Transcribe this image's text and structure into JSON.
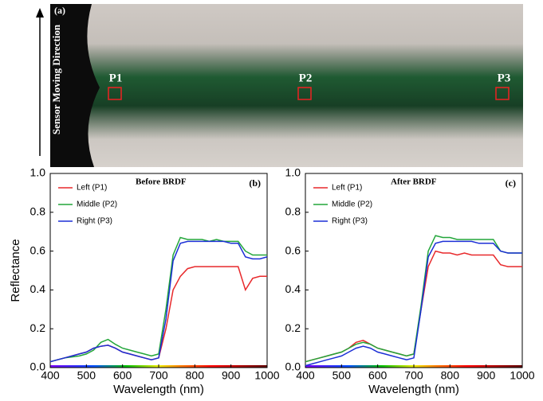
{
  "image": {
    "panel_label": "(a)",
    "arrow_label": "Sensor Moving Direction",
    "points": [
      "P1",
      "P2",
      "P3"
    ]
  },
  "chart_data": [
    {
      "type": "line",
      "title": "Before BRDF",
      "panel_label": "(b)",
      "xlabel": "Wavelength (nm)",
      "ylabel": "Reflectance",
      "x": [
        400,
        420,
        440,
        460,
        480,
        500,
        520,
        540,
        560,
        580,
        600,
        620,
        640,
        660,
        680,
        700,
        720,
        740,
        760,
        780,
        800,
        820,
        840,
        860,
        880,
        900,
        920,
        940,
        960,
        980,
        1000
      ],
      "series": [
        {
          "name": "Left (P1)",
          "color": "#e8292b",
          "values": [
            0.03,
            0.04,
            0.05,
            0.06,
            0.07,
            0.08,
            0.1,
            0.11,
            0.115,
            0.1,
            0.08,
            0.07,
            0.06,
            0.05,
            0.04,
            0.05,
            0.2,
            0.4,
            0.47,
            0.51,
            0.52,
            0.52,
            0.52,
            0.52,
            0.52,
            0.52,
            0.52,
            0.4,
            0.46,
            0.47,
            0.47
          ]
        },
        {
          "name": "Middle (P2)",
          "color": "#22a63a",
          "values": [
            0.03,
            0.04,
            0.05,
            0.055,
            0.06,
            0.07,
            0.09,
            0.13,
            0.145,
            0.12,
            0.1,
            0.09,
            0.08,
            0.07,
            0.06,
            0.07,
            0.3,
            0.58,
            0.67,
            0.66,
            0.66,
            0.66,
            0.65,
            0.66,
            0.65,
            0.65,
            0.65,
            0.6,
            0.58,
            0.58,
            0.58
          ]
        },
        {
          "name": "Right (P3)",
          "color": "#1c2fd6",
          "values": [
            0.03,
            0.04,
            0.05,
            0.06,
            0.07,
            0.08,
            0.1,
            0.11,
            0.115,
            0.1,
            0.08,
            0.07,
            0.06,
            0.05,
            0.04,
            0.05,
            0.25,
            0.55,
            0.64,
            0.65,
            0.65,
            0.65,
            0.65,
            0.65,
            0.65,
            0.64,
            0.64,
            0.57,
            0.56,
            0.56,
            0.57
          ]
        }
      ],
      "xlim": [
        400,
        1000
      ],
      "ylim": [
        0,
        1
      ],
      "xticks": [
        400,
        500,
        600,
        700,
        800,
        900,
        1000
      ],
      "yticks": [
        {
          "value": 0,
          "label": "0.0"
        },
        {
          "value": 0.2,
          "label": "0.2"
        },
        {
          "value": 0.4,
          "label": "0.4"
        },
        {
          "value": 0.6,
          "label": "0.6"
        },
        {
          "value": 0.8,
          "label": "0.8"
        },
        {
          "value": 1,
          "label": "1.0"
        }
      ]
    },
    {
      "type": "line",
      "title": "After BRDF",
      "panel_label": "(c)",
      "xlabel": "Wavelength (nm)",
      "x": [
        400,
        420,
        440,
        460,
        480,
        500,
        520,
        540,
        560,
        580,
        600,
        620,
        640,
        660,
        680,
        700,
        720,
        740,
        760,
        780,
        800,
        820,
        840,
        860,
        880,
        900,
        920,
        940,
        960,
        980,
        1000
      ],
      "series": [
        {
          "name": "Left (P1)",
          "color": "#e8292b",
          "values": [
            0.03,
            0.04,
            0.05,
            0.06,
            0.07,
            0.08,
            0.1,
            0.13,
            0.14,
            0.12,
            0.1,
            0.09,
            0.08,
            0.07,
            0.06,
            0.07,
            0.3,
            0.52,
            0.6,
            0.59,
            0.59,
            0.58,
            0.59,
            0.58,
            0.58,
            0.58,
            0.58,
            0.53,
            0.52,
            0.52,
            0.52
          ]
        },
        {
          "name": "Middle (P2)",
          "color": "#22a63a",
          "values": [
            0.03,
            0.04,
            0.05,
            0.06,
            0.07,
            0.08,
            0.1,
            0.12,
            0.13,
            0.12,
            0.1,
            0.09,
            0.08,
            0.07,
            0.06,
            0.07,
            0.32,
            0.6,
            0.68,
            0.67,
            0.67,
            0.66,
            0.66,
            0.66,
            0.66,
            0.66,
            0.66,
            0.6,
            0.59,
            0.59,
            0.59
          ]
        },
        {
          "name": "Right (P3)",
          "color": "#1c2fd6",
          "values": [
            0.01,
            0.02,
            0.03,
            0.04,
            0.05,
            0.06,
            0.08,
            0.1,
            0.11,
            0.1,
            0.08,
            0.07,
            0.06,
            0.05,
            0.04,
            0.05,
            0.3,
            0.57,
            0.64,
            0.65,
            0.65,
            0.65,
            0.65,
            0.65,
            0.64,
            0.64,
            0.64,
            0.6,
            0.59,
            0.59,
            0.59
          ]
        }
      ],
      "xlim": [
        400,
        1000
      ],
      "ylim": [
        0,
        1
      ],
      "xticks": [
        400,
        500,
        600,
        700,
        800,
        900,
        1000
      ],
      "yticks": [
        {
          "value": 0,
          "label": "0.0"
        },
        {
          "value": 0.2,
          "label": "0.2"
        },
        {
          "value": 0.4,
          "label": "0.4"
        },
        {
          "value": 0.6,
          "label": "0.6"
        },
        {
          "value": 0.8,
          "label": "0.8"
        },
        {
          "value": 1,
          "label": "1.0"
        }
      ]
    }
  ]
}
